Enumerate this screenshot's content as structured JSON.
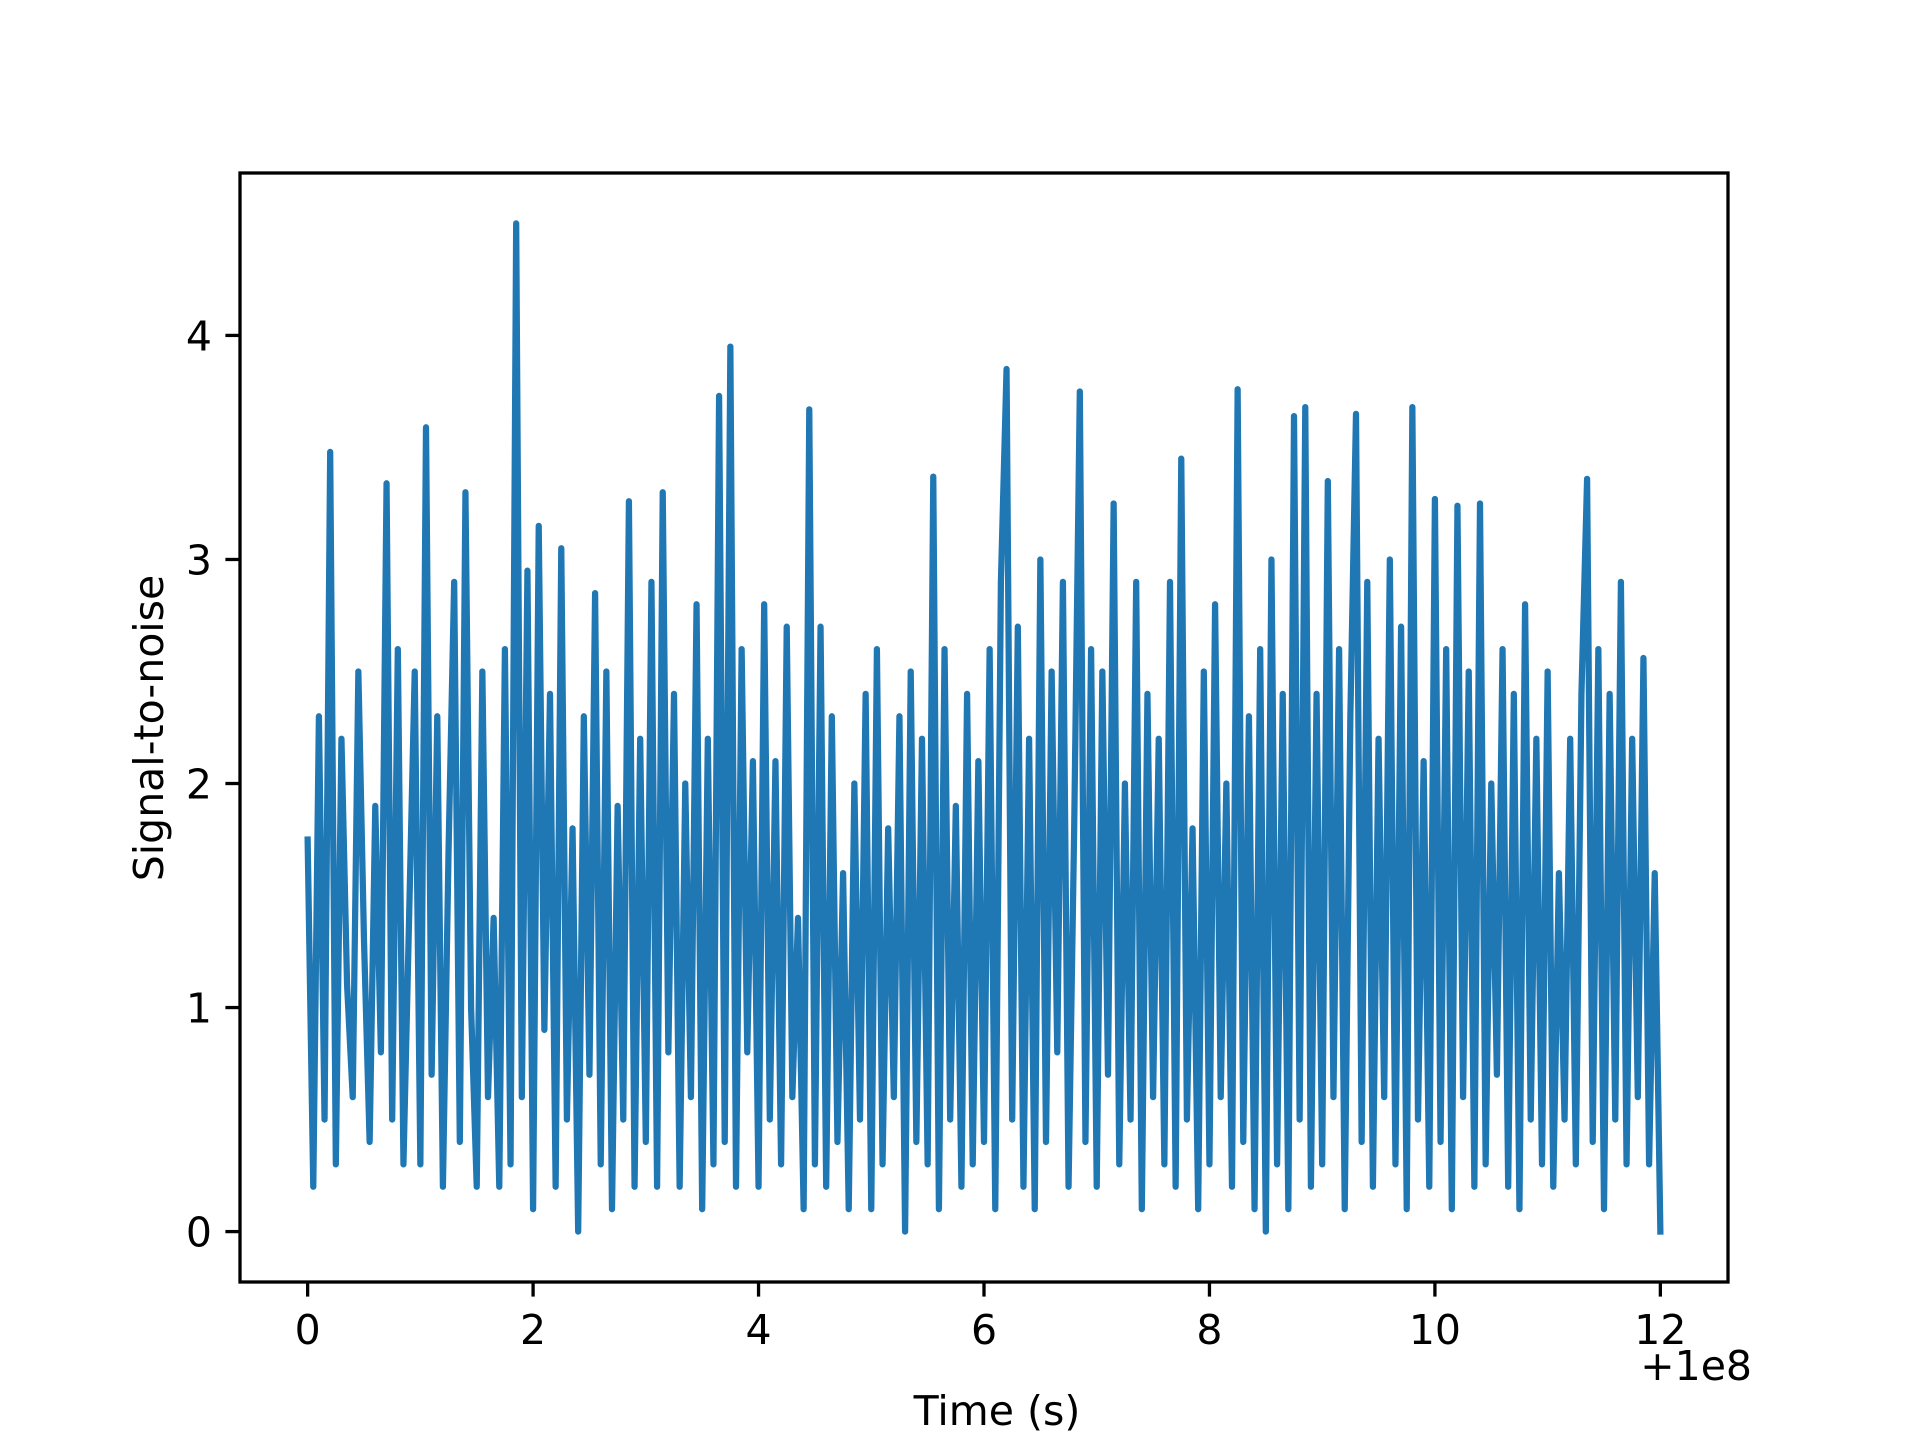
{
  "chart_data": {
    "type": "line",
    "xlabel": "Time (s)",
    "ylabel": "Signal-to-noise",
    "x_offset_text": "+1e8",
    "xlim": [
      -0.6,
      12.6
    ],
    "ylim": [
      -0.225,
      4.725
    ],
    "xticks": [
      0,
      2,
      4,
      6,
      8,
      10,
      12
    ],
    "yticks": [
      0,
      1,
      2,
      3,
      4
    ],
    "grid": false,
    "series": [
      {
        "color": "#1f77b4",
        "x": [
          0,
          0.05,
          0.1,
          0.15,
          0.2,
          0.25,
          0.3,
          0.35,
          0.4,
          0.45,
          0.5,
          0.55,
          0.6,
          0.65,
          0.7,
          0.75,
          0.8,
          0.85,
          0.9,
          0.95,
          1,
          1.05,
          1.1,
          1.15,
          1.2,
          1.25,
          1.3,
          1.35,
          1.4,
          1.45,
          1.5,
          1.55,
          1.6,
          1.65,
          1.7,
          1.75,
          1.8,
          1.85,
          1.9,
          1.95,
          2,
          2.05,
          2.1,
          2.15,
          2.2,
          2.25,
          2.3,
          2.35,
          2.4,
          2.45,
          2.5,
          2.55,
          2.6,
          2.65,
          2.7,
          2.75,
          2.8,
          2.85,
          2.9,
          2.95,
          3,
          3.05,
          3.1,
          3.15,
          3.2,
          3.25,
          3.3,
          3.35,
          3.4,
          3.45,
          3.5,
          3.55,
          3.6,
          3.65,
          3.7,
          3.75,
          3.8,
          3.85,
          3.9,
          3.95,
          4,
          4.05,
          4.1,
          4.15,
          4.2,
          4.25,
          4.3,
          4.35,
          4.4,
          4.45,
          4.5,
          4.55,
          4.6,
          4.65,
          4.7,
          4.75,
          4.8,
          4.85,
          4.9,
          4.95,
          5,
          5.05,
          5.1,
          5.15,
          5.2,
          5.25,
          5.3,
          5.35,
          5.4,
          5.45,
          5.5,
          5.55,
          5.6,
          5.65,
          5.7,
          5.75,
          5.8,
          5.85,
          5.9,
          5.95,
          6,
          6.05,
          6.1,
          6.15,
          6.2,
          6.25,
          6.3,
          6.35,
          6.4,
          6.45,
          6.5,
          6.55,
          6.6,
          6.65,
          6.7,
          6.75,
          6.8,
          6.85,
          6.9,
          6.95,
          7,
          7.05,
          7.1,
          7.15,
          7.2,
          7.25,
          7.3,
          7.35,
          7.4,
          7.45,
          7.5,
          7.55,
          7.6,
          7.65,
          7.7,
          7.75,
          7.8,
          7.85,
          7.9,
          7.95,
          8,
          8.05,
          8.1,
          8.15,
          8.2,
          8.25,
          8.3,
          8.35,
          8.4,
          8.45,
          8.5,
          8.55,
          8.6,
          8.65,
          8.7,
          8.75,
          8.8,
          8.85,
          8.9,
          8.95,
          9,
          9.05,
          9.1,
          9.15,
          9.2,
          9.25,
          9.3,
          9.35,
          9.4,
          9.45,
          9.5,
          9.55,
          9.6,
          9.65,
          9.7,
          9.75,
          9.8,
          9.85,
          9.9,
          9.95,
          10,
          10.05,
          10.1,
          10.15,
          10.2,
          10.25,
          10.3,
          10.35,
          10.4,
          10.45,
          10.5,
          10.55,
          10.6,
          10.65,
          10.7,
          10.75,
          10.8,
          10.85,
          10.9,
          10.95,
          11,
          11.05,
          11.1,
          11.15,
          11.2,
          11.25,
          11.3,
          11.35,
          11.4,
          11.45,
          11.5,
          11.55,
          11.6,
          11.65,
          11.7,
          11.75,
          11.8,
          11.85,
          11.9,
          11.95,
          12
        ],
        "values": [
          1.75,
          0.2,
          2.3,
          0.5,
          3.48,
          0.3,
          2.2,
          1.1,
          0.6,
          2.5,
          1.3,
          0.4,
          1.9,
          0.8,
          3.34,
          0.5,
          2.6,
          0.3,
          1.4,
          2.5,
          0.3,
          3.59,
          0.7,
          2.3,
          0.2,
          1.7,
          2.9,
          0.4,
          3.3,
          1.0,
          0.2,
          2.5,
          0.6,
          1.4,
          0.2,
          2.6,
          0.3,
          4.5,
          0.6,
          2.95,
          0.1,
          3.15,
          0.9,
          2.4,
          0.2,
          3.05,
          0.5,
          1.8,
          0.0,
          2.3,
          0.7,
          2.85,
          0.3,
          2.5,
          0.1,
          1.9,
          0.5,
          3.26,
          0.2,
          2.2,
          0.4,
          2.9,
          0.2,
          3.3,
          0.8,
          2.4,
          0.2,
          2.0,
          0.6,
          2.8,
          0.1,
          2.2,
          0.3,
          3.73,
          0.4,
          3.95,
          0.2,
          2.6,
          0.8,
          2.1,
          0.2,
          2.8,
          0.5,
          2.1,
          0.3,
          2.7,
          0.6,
          1.4,
          0.1,
          3.67,
          0.3,
          2.7,
          0.2,
          2.3,
          0.4,
          1.6,
          0.1,
          2.0,
          0.5,
          2.4,
          0.1,
          2.6,
          0.3,
          1.8,
          0.6,
          2.3,
          0.0,
          2.5,
          0.4,
          2.2,
          0.3,
          3.37,
          0.1,
          2.6,
          0.5,
          1.9,
          0.2,
          2.4,
          0.3,
          2.1,
          0.4,
          2.6,
          0.1,
          2.9,
          3.85,
          0.5,
          2.7,
          0.2,
          2.2,
          0.1,
          3.0,
          0.4,
          2.5,
          0.8,
          2.9,
          0.2,
          1.8,
          3.75,
          0.4,
          2.6,
          0.2,
          2.5,
          0.7,
          3.25,
          0.3,
          2.0,
          0.5,
          2.9,
          0.1,
          2.4,
          0.6,
          2.2,
          0.3,
          2.9,
          0.2,
          3.45,
          0.5,
          1.8,
          0.1,
          2.5,
          0.3,
          2.8,
          0.6,
          2.0,
          0.2,
          3.76,
          0.4,
          2.3,
          0.1,
          2.6,
          0.0,
          3.0,
          0.3,
          2.4,
          0.1,
          3.64,
          0.5,
          3.68,
          0.2,
          2.4,
          0.3,
          3.35,
          0.6,
          2.6,
          0.1,
          2.3,
          3.65,
          0.4,
          2.9,
          0.2,
          2.2,
          0.6,
          3.0,
          0.3,
          2.7,
          0.1,
          3.68,
          0.5,
          2.1,
          0.2,
          3.27,
          0.4,
          2.6,
          0.1,
          3.24,
          0.6,
          2.5,
          0.2,
          3.25,
          0.3,
          2.0,
          0.7,
          2.6,
          0.2,
          2.4,
          0.1,
          2.8,
          0.5,
          2.2,
          0.3,
          2.5,
          0.2,
          1.6,
          0.5,
          2.2,
          0.3,
          2.4,
          3.36,
          0.4,
          2.6,
          0.1,
          2.4,
          0.5,
          2.9,
          0.3,
          2.2,
          0.6,
          2.56,
          0.3,
          1.6,
          0.0
        ]
      }
    ]
  }
}
